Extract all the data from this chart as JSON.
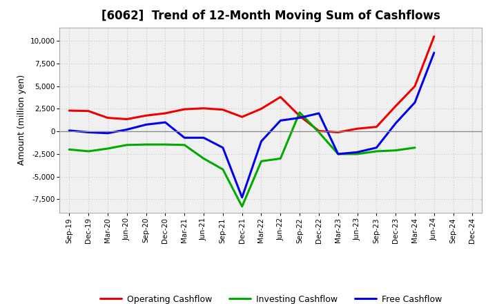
{
  "title": "[6062]  Trend of 12-Month Moving Sum of Cashflows",
  "ylabel": "Amount (million yen)",
  "x_labels": [
    "Sep-19",
    "Dec-19",
    "Mar-20",
    "Jun-20",
    "Sep-20",
    "Dec-20",
    "Mar-21",
    "Jun-21",
    "Sep-21",
    "Dec-21",
    "Mar-22",
    "Jun-22",
    "Sep-22",
    "Dec-22",
    "Mar-23",
    "Jun-23",
    "Sep-23",
    "Dec-23",
    "Mar-24",
    "Jun-24",
    "Sep-24",
    "Dec-24"
  ],
  "operating": [
    2300,
    2250,
    1500,
    1350,
    1750,
    2000,
    2450,
    2550,
    2400,
    1600,
    2500,
    3800,
    1700,
    50,
    -100,
    300,
    500,
    2800,
    5000,
    10500,
    null,
    null
  ],
  "investing": [
    -2000,
    -2200,
    -1900,
    -1500,
    -1450,
    -1450,
    -1500,
    -3000,
    -4200,
    -8300,
    -3300,
    -3000,
    2100,
    -100,
    -2500,
    -2500,
    -2200,
    -2100,
    -1800,
    null,
    null,
    null
  ],
  "free": [
    100,
    -100,
    -200,
    200,
    750,
    1000,
    -700,
    -700,
    -1800,
    -7300,
    -1100,
    1200,
    1500,
    2000,
    -2500,
    -2300,
    -1800,
    900,
    3200,
    8700,
    null,
    null
  ],
  "operating_color": "#ee0000",
  "investing_color": "#00aa00",
  "free_color": "#0000ee",
  "ylim": [
    -9000,
    11500
  ],
  "yticks": [
    -7500,
    -5000,
    -2500,
    0,
    2500,
    5000,
    7500,
    10000
  ],
  "bg_color": "#ffffff",
  "plot_bg_color": "#f0f0f0",
  "grid_color": "#cccccc",
  "zero_line_color": "#888888",
  "line_width": 2.2,
  "title_fontsize": 12,
  "tick_fontsize": 7.5,
  "ylabel_fontsize": 9,
  "legend_fontsize": 9
}
